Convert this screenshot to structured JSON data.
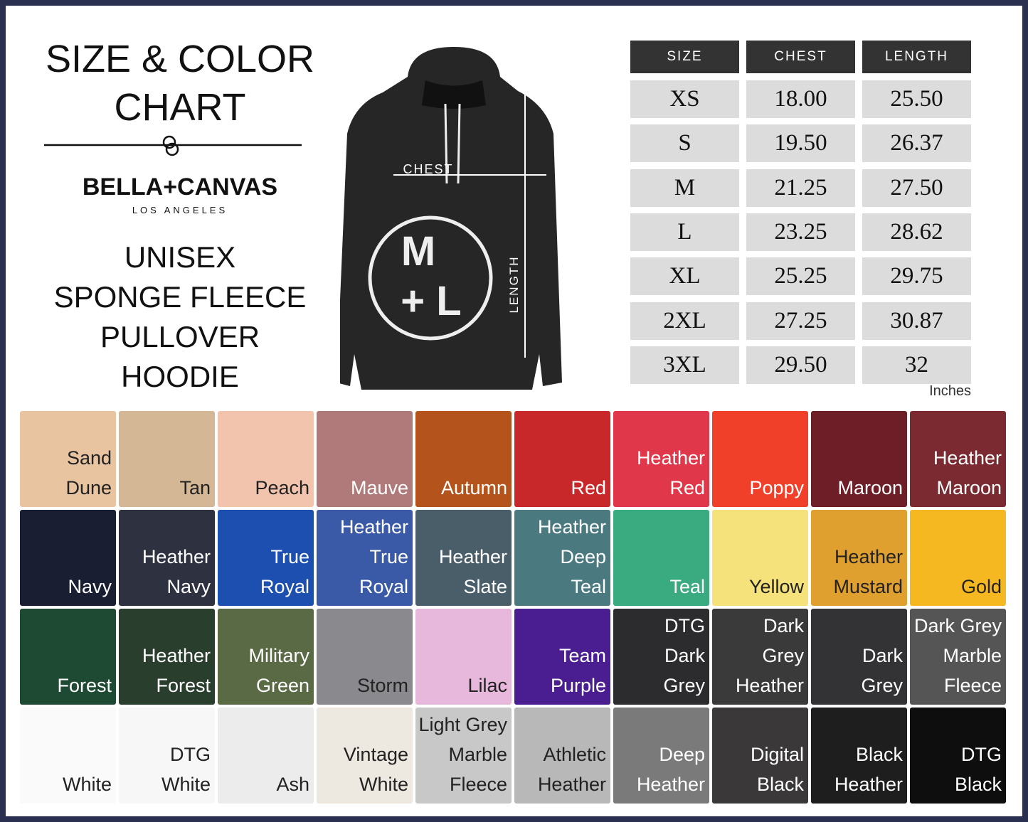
{
  "header": {
    "title_lines": [
      "SIZE & COLOR",
      "CHART"
    ],
    "brand": "BELLA+CANVAS",
    "brand_sub": "LOS ANGELES",
    "product_lines": [
      "UNISEX",
      "SPONGE FLEECE",
      "PULLOVER",
      "HOODIE"
    ]
  },
  "diagram": {
    "chest": "CHEST",
    "length": "LENGTH",
    "logo_top": "M",
    "logo_bottom": "+ L"
  },
  "table": {
    "headers": [
      "SIZE",
      "CHEST",
      "LENGTH"
    ],
    "rows": [
      [
        "XS",
        "18.00",
        "25.50"
      ],
      [
        "S",
        "19.50",
        "26.37"
      ],
      [
        "M",
        "21.25",
        "27.50"
      ],
      [
        "L",
        "23.25",
        "28.62"
      ],
      [
        "XL",
        "25.25",
        "29.75"
      ],
      [
        "2XL",
        "27.25",
        "30.87"
      ],
      [
        "3XL",
        "29.50",
        "32"
      ]
    ],
    "unit": "Inches"
  },
  "swatches": [
    {
      "lines": [
        "Sand",
        "Dune"
      ],
      "color": "#e8c4a0",
      "text_color": "#222"
    },
    {
      "lines": [
        "Tan"
      ],
      "color": "#d4b896",
      "text_color": "#222"
    },
    {
      "lines": [
        "Peach"
      ],
      "color": "#f2c4ae",
      "text_color": "#222"
    },
    {
      "lines": [
        "Mauve"
      ],
      "color": "#b07a7a",
      "text_color": "#fff"
    },
    {
      "lines": [
        "Autumn"
      ],
      "color": "#b5531c",
      "text_color": "#fff"
    },
    {
      "lines": [
        "Red"
      ],
      "color": "#c8282a",
      "text_color": "#fff"
    },
    {
      "lines": [
        "Heather",
        "Red"
      ],
      "color": "#e0384a",
      "text_color": "#fff"
    },
    {
      "lines": [
        "Poppy"
      ],
      "color": "#f0402a",
      "text_color": "#fff"
    },
    {
      "lines": [
        "Maroon"
      ],
      "color": "#6e1e26",
      "text_color": "#fff"
    },
    {
      "lines": [
        "Heather",
        "Maroon"
      ],
      "color": "#7a2a30",
      "text_color": "#fff"
    },
    {
      "lines": [
        "Navy"
      ],
      "color": "#1a1e33",
      "text_color": "#fff"
    },
    {
      "lines": [
        "Heather",
        "Navy"
      ],
      "color": "#2e3140",
      "text_color": "#fff"
    },
    {
      "lines": [
        "True",
        "Royal"
      ],
      "color": "#1d4fb0",
      "text_color": "#fff"
    },
    {
      "lines": [
        "Heather",
        "True",
        "Royal"
      ],
      "color": "#3a5aa8",
      "text_color": "#fff"
    },
    {
      "lines": [
        "Heather",
        "Slate"
      ],
      "color": "#4a5e6a",
      "text_color": "#fff"
    },
    {
      "lines": [
        "Heather",
        "Deep",
        "Teal"
      ],
      "color": "#4a7a80",
      "text_color": "#fff"
    },
    {
      "lines": [
        "Teal"
      ],
      "color": "#3aaa80",
      "text_color": "#fff"
    },
    {
      "lines": [
        "Yellow"
      ],
      "color": "#f6e27a",
      "text_color": "#222"
    },
    {
      "lines": [
        "Heather",
        "Mustard"
      ],
      "color": "#e0a030",
      "text_color": "#222"
    },
    {
      "lines": [
        "Gold"
      ],
      "color": "#f5b820",
      "text_color": "#222"
    },
    {
      "lines": [
        "Forest"
      ],
      "color": "#1e4a34",
      "text_color": "#fff"
    },
    {
      "lines": [
        "Heather",
        "Forest"
      ],
      "color": "#2a3e2e",
      "text_color": "#fff"
    },
    {
      "lines": [
        "Military",
        "Green"
      ],
      "color": "#5a6a44",
      "text_color": "#fff"
    },
    {
      "lines": [
        "Storm"
      ],
      "color": "#8a8a8e",
      "text_color": "#222"
    },
    {
      "lines": [
        "Lilac"
      ],
      "color": "#e8b8dc",
      "text_color": "#222"
    },
    {
      "lines": [
        "Team",
        "Purple"
      ],
      "color": "#4a1e90",
      "text_color": "#fff"
    },
    {
      "lines": [
        "DTG",
        "Dark",
        "Grey"
      ],
      "color": "#2c2c2e",
      "text_color": "#fff"
    },
    {
      "lines": [
        "Dark",
        "Grey",
        "Heather"
      ],
      "color": "#3a3a3a",
      "text_color": "#fff"
    },
    {
      "lines": [
        "Dark",
        "Grey"
      ],
      "color": "#333336",
      "text_color": "#fff"
    },
    {
      "lines": [
        "Dark Grey",
        "Marble",
        "Fleece"
      ],
      "color": "#555555",
      "text_color": "#fff"
    },
    {
      "lines": [
        "White"
      ],
      "color": "#fafafa",
      "text_color": "#222"
    },
    {
      "lines": [
        "DTG",
        "White"
      ],
      "color": "#f7f7f7",
      "text_color": "#222"
    },
    {
      "lines": [
        "Ash"
      ],
      "color": "#ececec",
      "text_color": "#222"
    },
    {
      "lines": [
        "Vintage",
        "White"
      ],
      "color": "#ede8e0",
      "text_color": "#222"
    },
    {
      "lines": [
        "Light Grey",
        "Marble",
        "Fleece"
      ],
      "color": "#c8c8c8",
      "text_color": "#222"
    },
    {
      "lines": [
        "Athletic",
        "Heather"
      ],
      "color": "#b8b8b8",
      "text_color": "#222"
    },
    {
      "lines": [
        "Deep",
        "Heather"
      ],
      "color": "#7a7a7a",
      "text_color": "#fff"
    },
    {
      "lines": [
        "Digital",
        "Black"
      ],
      "color": "#3a3838",
      "text_color": "#fff"
    },
    {
      "lines": [
        "Black",
        "Heather"
      ],
      "color": "#1e1e1e",
      "text_color": "#fff"
    },
    {
      "lines": [
        "DTG",
        "Black"
      ],
      "color": "#0e0e0e",
      "text_color": "#fff"
    }
  ]
}
